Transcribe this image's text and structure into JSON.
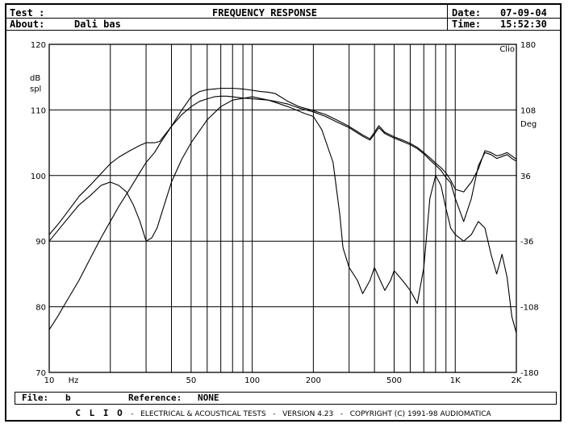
{
  "header": {
    "test_label": "Test :",
    "title": "FREQUENCY RESPONSE",
    "date_label": "Date:",
    "date_value": "07-09-04",
    "about_label": "About:",
    "about_value": "Dali bas",
    "time_label": "Time:",
    "time_value": "15:52:30"
  },
  "footer": {
    "file_label": "File:",
    "file_value": "b",
    "reference_label": "Reference:",
    "reference_value": "NONE",
    "brand": "C L I O",
    "brand_sep1": "-",
    "suite": "ELECTRICAL & ACOUSTICAL TESTS",
    "brand_sep2": "-",
    "version": "VERSION 4.23",
    "brand_sep3": "-",
    "copyright": "COPYRIGHT (C) 1991-98 AUDIOMATICA"
  },
  "chart_data": {
    "type": "line",
    "title": "FREQUENCY RESPONSE",
    "xlabel": "Hz",
    "ylabel": "dB spl",
    "y2label": "Deg",
    "corner_label": "Clio",
    "x_scale": "log",
    "xlim": [
      10,
      2000
    ],
    "ylim": [
      70,
      120
    ],
    "y2lim": [
      -180,
      180
    ],
    "x_ticks": [
      10,
      50,
      100,
      200,
      500,
      1000,
      2000
    ],
    "x_tick_labels": [
      "10",
      "50",
      "100",
      "200",
      "500",
      "1K",
      "2K"
    ],
    "y_ticks": [
      70,
      80,
      90,
      100,
      110,
      120
    ],
    "y2_ticks": [
      -180,
      -108,
      -36,
      36,
      108,
      180
    ],
    "grid": true,
    "x_grid": [
      20,
      30,
      40,
      50,
      60,
      70,
      80,
      90,
      100,
      200,
      300,
      400,
      500,
      600,
      700,
      800,
      900,
      1000
    ],
    "series": [
      {
        "x": [
          10,
          11,
          12,
          14,
          16,
          18,
          20,
          22,
          25,
          28,
          30,
          33,
          35,
          40,
          45,
          50,
          55,
          60,
          65,
          70,
          75,
          80,
          90,
          100,
          110,
          120,
          130,
          150,
          170,
          200,
          230,
          260,
          300,
          350,
          380,
          400,
          420,
          450,
          500,
          550,
          600,
          650,
          700,
          750,
          800,
          850,
          900,
          950,
          1000,
          1100,
          1200,
          1300,
          1400,
          1500,
          1600,
          1700,
          1800,
          1900,
          2000
        ],
        "values": [
          91,
          92.5,
          94,
          96.8,
          98.6,
          100.3,
          101.8,
          102.8,
          103.8,
          104.6,
          105,
          105,
          105.2,
          107.5,
          110,
          112,
          112.8,
          113.1,
          113.2,
          113.3,
          113.3,
          113.3,
          113.2,
          113,
          112.8,
          112.7,
          112.5,
          111.3,
          110.5,
          109.9,
          109.3,
          108.5,
          107.5,
          106.2,
          105.6,
          106.6,
          107.6,
          106.6,
          105.9,
          105.4,
          104.9,
          104.3,
          103.5,
          102.7,
          101.9,
          101.2,
          100.4,
          99.3,
          97.9,
          97.5,
          99,
          101,
          103.8,
          103.5,
          103,
          103.2,
          103.5,
          103,
          102.5
        ]
      },
      {
        "x": [
          10,
          11,
          12,
          14,
          16,
          18,
          20,
          22,
          25,
          28,
          30,
          33,
          35,
          40,
          45,
          50,
          55,
          60,
          65,
          70,
          75,
          80,
          90,
          100,
          110,
          120,
          130,
          150,
          170,
          200,
          230,
          260,
          300,
          350,
          380,
          400,
          420,
          450,
          500,
          550,
          600,
          650,
          700,
          750,
          800,
          850,
          900,
          950,
          1000,
          1100,
          1200,
          1300,
          1400,
          1500,
          1600,
          1700,
          1800,
          1900,
          2000
        ],
        "values": [
          76.5,
          78.5,
          80.5,
          84,
          87.5,
          90.5,
          93,
          95.3,
          98,
          100.5,
          102,
          103.5,
          104.8,
          107.5,
          109.3,
          110.5,
          111.3,
          111.7,
          112,
          112.1,
          112.1,
          112,
          111.8,
          111.7,
          111.6,
          111.5,
          111.3,
          110.9,
          110.3,
          109.7,
          109,
          108.2,
          107.3,
          106,
          105.4,
          106.3,
          107.3,
          106.4,
          105.7,
          105.2,
          104.7,
          104.1,
          103.3,
          102.4,
          101.6,
          100.8,
          99.7,
          98.9,
          96.5,
          93,
          96.5,
          101.5,
          103.5,
          103.2,
          102.6,
          102.9,
          103.2,
          102.6,
          102.2
        ]
      },
      {
        "x": [
          10,
          12,
          14,
          16,
          18,
          20,
          22,
          24,
          26,
          28,
          30,
          32,
          34,
          36,
          40,
          45,
          50,
          60,
          70,
          80,
          100,
          120,
          150,
          180,
          200,
          220,
          250,
          270,
          280,
          300,
          330,
          350,
          380,
          400,
          420,
          450,
          480,
          500,
          550,
          600,
          650,
          700,
          750,
          800,
          850,
          900,
          950,
          1000,
          1100,
          1200,
          1300,
          1400,
          1500,
          1600,
          1650,
          1700,
          1800,
          1900,
          2000
        ],
        "values": [
          90,
          93,
          95.5,
          97,
          98.5,
          99,
          98.5,
          97.5,
          95.5,
          93,
          90,
          90.5,
          92,
          94.5,
          99,
          102.5,
          105,
          108.5,
          110.5,
          111.5,
          112,
          111.5,
          110.5,
          109.5,
          109,
          107,
          102,
          94,
          89,
          86,
          84,
          82,
          84,
          86,
          84.5,
          82.5,
          84,
          85.5,
          84,
          82.5,
          80.5,
          86,
          96.5,
          100,
          98.5,
          95,
          92,
          91,
          90,
          91,
          93,
          92,
          88,
          85,
          86.5,
          88,
          84.5,
          78.5,
          76
        ]
      }
    ],
    "series_alt_note": ""
  }
}
